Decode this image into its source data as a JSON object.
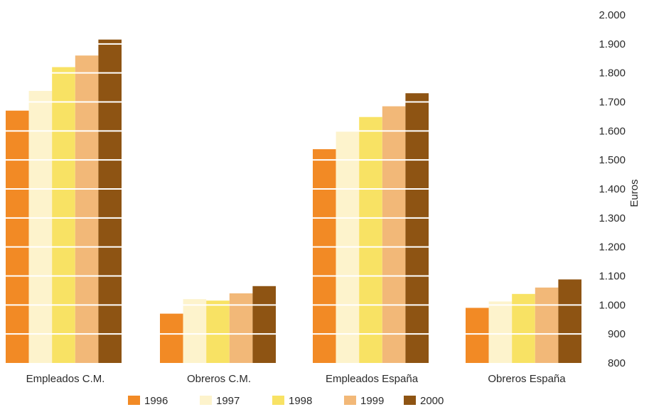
{
  "chart_data": {
    "type": "bar",
    "categories": [
      "Empleados C.M.",
      "Obreros C.M.",
      "Empleados España",
      "Obreros España"
    ],
    "series": [
      {
        "name": "1996",
        "values": [
          1670,
          970,
          1537,
          990
        ],
        "color": "#f28a25"
      },
      {
        "name": "1997",
        "values": [
          1738,
          1020,
          1598,
          1012
        ],
        "color": "#fdf3cc"
      },
      {
        "name": "1998",
        "values": [
          1820,
          1015,
          1648,
          1038
        ],
        "color": "#f8e264"
      },
      {
        "name": "1999",
        "values": [
          1860,
          1040,
          1685,
          1060
        ],
        "color": "#f2b878"
      },
      {
        "name": "2000",
        "values": [
          1915,
          1065,
          1730,
          1088
        ],
        "color": "#8e5413"
      }
    ],
    "ylabel": "Euros",
    "ylim": [
      800,
      2000
    ],
    "yticks": [
      "800",
      "900",
      "1.000",
      "1.100",
      "1.200",
      "1.300",
      "1.400",
      "1.500",
      "1.600",
      "1.700",
      "1.800",
      "1.900",
      "2.000"
    ],
    "ytick_values": [
      800,
      900,
      1000,
      1100,
      1200,
      1300,
      1400,
      1500,
      1600,
      1700,
      1800,
      1900,
      2000
    ],
    "y_axis_position": "right",
    "gridlines": "white-horizontal-over-bars",
    "legend_position": "bottom"
  }
}
